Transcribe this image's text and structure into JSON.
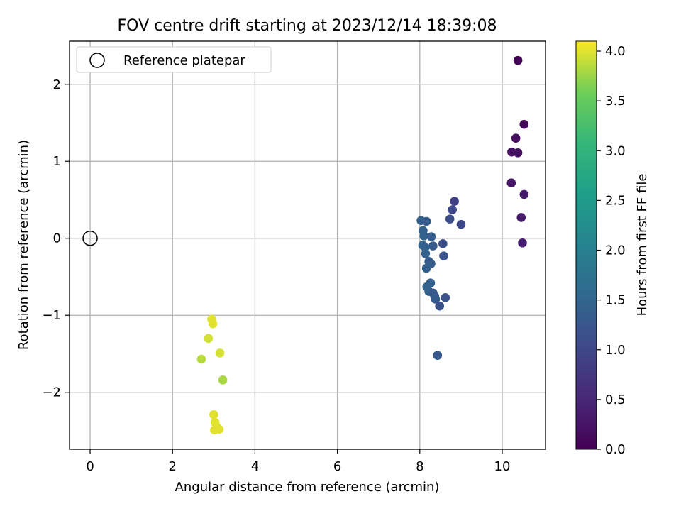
{
  "chart_data": {
    "type": "scatter",
    "title": "FOV centre drift starting at 2023/12/14 18:39:08",
    "xlabel": "Angular distance from reference (arcmin)",
    "ylabel": "Rotation from reference (arcmin)",
    "xlim": [
      -0.5,
      11.05
    ],
    "ylim": [
      -2.74,
      2.56
    ],
    "xticks": [
      0,
      2,
      4,
      6,
      8,
      10
    ],
    "yticks": [
      -2,
      -1,
      0,
      1,
      2
    ],
    "ytick_labels": [
      "−2",
      "−1",
      "0",
      "1",
      "2"
    ],
    "grid": true,
    "legend": {
      "placement": "top-left",
      "label": "Reference platepar"
    },
    "reference_point": {
      "x": 0,
      "y": 0
    },
    "colorbar": {
      "label": "Hours from first FF file",
      "range": [
        0.0,
        4.1
      ],
      "ticks": [
        0.0,
        0.5,
        1.0,
        1.5,
        2.0,
        2.5,
        3.0,
        3.5,
        4.0
      ],
      "tick_labels": [
        "0.0",
        "0.5",
        "1.0",
        "1.5",
        "2.0",
        "2.5",
        "3.0",
        "3.5",
        "4.0"
      ],
      "colormap": "viridis"
    },
    "series": [
      {
        "points": [
          {
            "x": 10.38,
            "y": 2.31,
            "c": 0.05
          },
          {
            "x": 10.53,
            "y": 1.48,
            "c": 0.1
          },
          {
            "x": 10.33,
            "y": 1.3,
            "c": 0.15
          },
          {
            "x": 10.23,
            "y": 1.12,
            "c": 0.2
          },
          {
            "x": 10.38,
            "y": 1.11,
            "c": 0.2
          },
          {
            "x": 10.22,
            "y": 0.72,
            "c": 0.25
          },
          {
            "x": 10.53,
            "y": 0.57,
            "c": 0.3
          },
          {
            "x": 10.46,
            "y": 0.27,
            "c": 0.35
          },
          {
            "x": 10.49,
            "y": -0.06,
            "c": 0.4
          },
          {
            "x": 8.84,
            "y": 0.48,
            "c": 0.9
          },
          {
            "x": 8.79,
            "y": 0.37,
            "c": 1.0
          },
          {
            "x": 8.73,
            "y": 0.25,
            "c": 1.1
          },
          {
            "x": 9.0,
            "y": 0.18,
            "c": 1.0
          },
          {
            "x": 8.56,
            "y": -0.07,
            "c": 1.1
          },
          {
            "x": 8.58,
            "y": -0.23,
            "c": 1.2
          },
          {
            "x": 8.62,
            "y": -0.77,
            "c": 1.2
          },
          {
            "x": 8.48,
            "y": -0.88,
            "c": 1.15
          },
          {
            "x": 8.43,
            "y": -1.52,
            "c": 1.25
          },
          {
            "x": 8.03,
            "y": 0.23,
            "c": 1.4
          },
          {
            "x": 8.16,
            "y": 0.22,
            "c": 1.35
          },
          {
            "x": 8.08,
            "y": 0.1,
            "c": 1.4
          },
          {
            "x": 8.1,
            "y": 0.03,
            "c": 1.45
          },
          {
            "x": 8.28,
            "y": 0.02,
            "c": 1.35
          },
          {
            "x": 8.07,
            "y": -0.09,
            "c": 1.45
          },
          {
            "x": 8.32,
            "y": -0.1,
            "c": 1.3
          },
          {
            "x": 8.13,
            "y": -0.12,
            "c": 1.4
          },
          {
            "x": 8.14,
            "y": -0.2,
            "c": 1.45
          },
          {
            "x": 8.22,
            "y": -0.3,
            "c": 1.35
          },
          {
            "x": 8.27,
            "y": -0.33,
            "c": 1.35
          },
          {
            "x": 8.16,
            "y": -0.39,
            "c": 1.4
          },
          {
            "x": 8.26,
            "y": -0.58,
            "c": 1.4
          },
          {
            "x": 8.17,
            "y": -0.63,
            "c": 1.45
          },
          {
            "x": 8.22,
            "y": -0.69,
            "c": 1.4
          },
          {
            "x": 8.32,
            "y": -0.71,
            "c": 1.3
          },
          {
            "x": 8.36,
            "y": -0.75,
            "c": 1.3
          },
          {
            "x": 8.38,
            "y": -0.79,
            "c": 1.3
          },
          {
            "x": 2.95,
            "y": -1.05,
            "c": 4.0
          },
          {
            "x": 2.98,
            "y": -1.11,
            "c": 4.0
          },
          {
            "x": 2.87,
            "y": -1.3,
            "c": 3.95
          },
          {
            "x": 3.15,
            "y": -1.49,
            "c": 3.95
          },
          {
            "x": 2.7,
            "y": -1.57,
            "c": 3.85
          },
          {
            "x": 3.22,
            "y": -1.84,
            "c": 3.8
          },
          {
            "x": 3.0,
            "y": -2.29,
            "c": 4.0
          },
          {
            "x": 3.03,
            "y": -2.39,
            "c": 4.0
          },
          {
            "x": 3.07,
            "y": -2.45,
            "c": 4.0
          },
          {
            "x": 3.13,
            "y": -2.48,
            "c": 4.0
          },
          {
            "x": 3.02,
            "y": -2.49,
            "c": 4.0
          }
        ]
      }
    ]
  }
}
